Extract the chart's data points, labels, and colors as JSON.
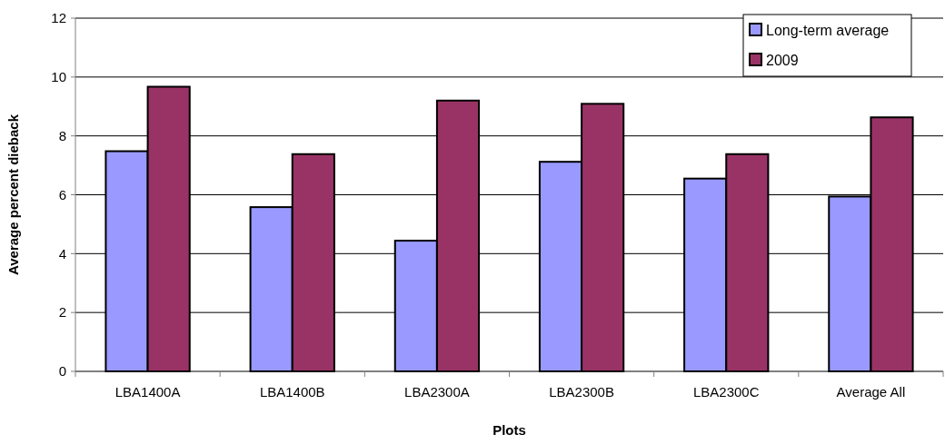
{
  "chart_data": {
    "type": "bar",
    "xlabel": "Plots",
    "ylabel": "Average percent dieback",
    "categories": [
      "LBA1400A",
      "LBA1400B",
      "LBA2300A",
      "LBA2300B",
      "LBA2300C",
      "Average All"
    ],
    "series": [
      {
        "name": "Long-term average",
        "color": "#9999ff",
        "values": [
          7.48,
          5.58,
          4.44,
          7.12,
          6.55,
          5.94
        ]
      },
      {
        "name": "2009",
        "color": "#993366",
        "values": [
          9.67,
          7.38,
          9.2,
          9.09,
          7.38,
          8.63
        ]
      }
    ],
    "ylim": [
      0,
      12
    ],
    "yticks": [
      0,
      2,
      4,
      6,
      8,
      10,
      12
    ],
    "grid": "y",
    "legend": "top right"
  }
}
